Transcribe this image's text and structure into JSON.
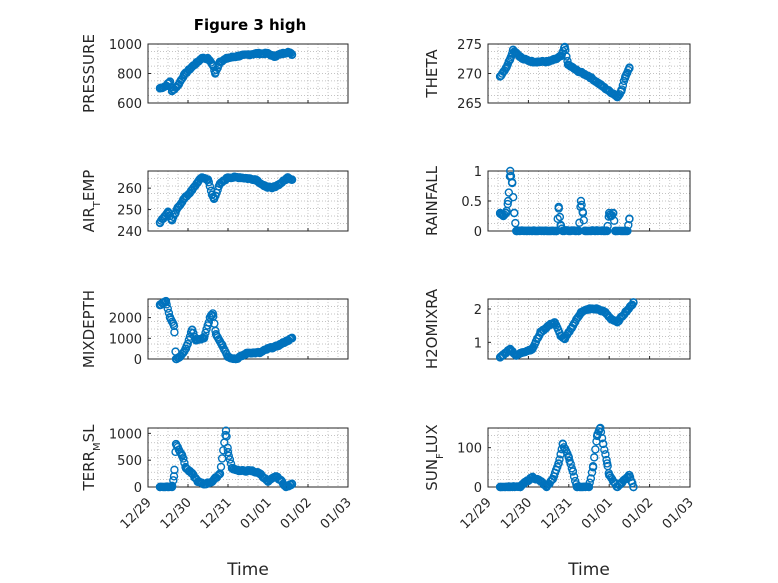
{
  "figure_title": "Figure 3 high",
  "marker_color": "#0072BD",
  "x_tick_labels": [
    "12/29",
    "12/30",
    "12/31",
    "01/01",
    "01/02",
    "01/03"
  ],
  "chart_data": [
    {
      "id": "pressure",
      "type": "scatter",
      "ylabel": "PRESSURE",
      "ylim": [
        600,
        1000
      ],
      "yticks": [
        600,
        800,
        1000
      ],
      "xlabel": "",
      "title": "Figure 3 high",
      "anchors": [
        [
          0.3,
          700
        ],
        [
          0.45,
          715
        ],
        [
          0.55,
          745
        ],
        [
          0.6,
          680
        ],
        [
          0.75,
          720
        ],
        [
          0.9,
          790
        ],
        [
          1.1,
          845
        ],
        [
          1.25,
          880
        ],
        [
          1.35,
          905
        ],
        [
          1.5,
          900
        ],
        [
          1.62,
          860
        ],
        [
          1.68,
          800
        ],
        [
          1.8,
          880
        ],
        [
          2.0,
          905
        ],
        [
          2.3,
          920
        ],
        [
          2.7,
          935
        ],
        [
          3.0,
          935
        ],
        [
          3.15,
          915
        ],
        [
          3.3,
          930
        ],
        [
          3.5,
          945
        ],
        [
          3.6,
          930
        ]
      ]
    },
    {
      "id": "theta",
      "type": "scatter",
      "ylabel": "THETA",
      "ylim": [
        265,
        275
      ],
      "yticks": [
        265,
        270,
        275
      ],
      "xlabel": "",
      "anchors": [
        [
          0.3,
          269.5
        ],
        [
          0.45,
          271
        ],
        [
          0.55,
          272.5
        ],
        [
          0.62,
          274
        ],
        [
          0.7,
          273.5
        ],
        [
          0.85,
          272.5
        ],
        [
          1.1,
          272
        ],
        [
          1.3,
          272
        ],
        [
          1.5,
          272
        ],
        [
          1.7,
          272.5
        ],
        [
          1.82,
          273
        ],
        [
          1.9,
          274.5
        ],
        [
          1.98,
          271.5
        ],
        [
          2.2,
          270.5
        ],
        [
          2.5,
          269.5
        ],
        [
          2.8,
          268
        ],
        [
          3.0,
          267
        ],
        [
          3.12,
          266.5
        ],
        [
          3.2,
          266
        ],
        [
          3.3,
          267
        ],
        [
          3.4,
          269.5
        ],
        [
          3.5,
          271
        ]
      ]
    },
    {
      "id": "air_temp",
      "type": "scatter",
      "ylabel": "AIR_TEMP",
      "ylim": [
        240,
        268
      ],
      "yticks": [
        240,
        250,
        260
      ],
      "xlabel": "",
      "anchors": [
        [
          0.3,
          244
        ],
        [
          0.5,
          249
        ],
        [
          0.6,
          245
        ],
        [
          0.75,
          251
        ],
        [
          0.9,
          255
        ],
        [
          1.1,
          259
        ],
        [
          1.25,
          263
        ],
        [
          1.35,
          265
        ],
        [
          1.5,
          264
        ],
        [
          1.6,
          257
        ],
        [
          1.65,
          255
        ],
        [
          1.8,
          262
        ],
        [
          2.0,
          265
        ],
        [
          2.3,
          265
        ],
        [
          2.7,
          264
        ],
        [
          2.9,
          261
        ],
        [
          3.1,
          260
        ],
        [
          3.3,
          262
        ],
        [
          3.5,
          265
        ],
        [
          3.6,
          264
        ]
      ]
    },
    {
      "id": "rainfall",
      "type": "scatter",
      "ylabel": "RAINFALL",
      "ylim": [
        0,
        1
      ],
      "yticks": [
        0,
        0.5,
        1
      ],
      "xlabel": "",
      "anchors": [
        [
          0.3,
          0.3
        ],
        [
          0.38,
          0.25
        ],
        [
          0.45,
          0.3
        ],
        [
          0.5,
          0.5
        ],
        [
          0.55,
          1.0
        ],
        [
          0.6,
          0.8
        ],
        [
          0.65,
          0.3
        ],
        [
          0.7,
          0
        ],
        [
          1.7,
          0
        ],
        [
          1.75,
          0.4
        ],
        [
          1.8,
          0.1
        ],
        [
          1.85,
          0
        ],
        [
          2.25,
          0
        ],
        [
          2.3,
          0.5
        ],
        [
          2.35,
          0.3
        ],
        [
          2.4,
          0
        ],
        [
          2.95,
          0
        ],
        [
          3.0,
          0.3
        ],
        [
          3.05,
          0.25
        ],
        [
          3.1,
          0.3
        ],
        [
          3.15,
          0
        ],
        [
          3.45,
          0
        ],
        [
          3.5,
          0.2
        ]
      ]
    },
    {
      "id": "mixdepth",
      "type": "scatter",
      "ylabel": "MIXDEPTH",
      "ylim": [
        0,
        2900
      ],
      "yticks": [
        0,
        1000,
        2000
      ],
      "xlabel": "",
      "anchors": [
        [
          0.3,
          2600
        ],
        [
          0.45,
          2800
        ],
        [
          0.55,
          2000
        ],
        [
          0.65,
          1600
        ],
        [
          0.7,
          0
        ],
        [
          0.8,
          100
        ],
        [
          0.95,
          500
        ],
        [
          1.1,
          1400
        ],
        [
          1.2,
          900
        ],
        [
          1.4,
          1000
        ],
        [
          1.55,
          2000
        ],
        [
          1.62,
          2200
        ],
        [
          1.7,
          1200
        ],
        [
          1.85,
          700
        ],
        [
          2.0,
          100
        ],
        [
          2.2,
          0
        ],
        [
          2.5,
          300
        ],
        [
          2.8,
          300
        ],
        [
          3.0,
          500
        ],
        [
          3.2,
          600
        ],
        [
          3.4,
          800
        ],
        [
          3.6,
          1000
        ]
      ]
    },
    {
      "id": "h2omixra",
      "type": "scatter",
      "ylabel": "H2OMIXRA",
      "ylim": [
        0.5,
        2.3
      ],
      "yticks": [
        1,
        2
      ],
      "xlabel": "",
      "anchors": [
        [
          0.3,
          0.55
        ],
        [
          0.45,
          0.7
        ],
        [
          0.55,
          0.8
        ],
        [
          0.7,
          0.6
        ],
        [
          0.85,
          0.7
        ],
        [
          1.1,
          0.8
        ],
        [
          1.3,
          1.3
        ],
        [
          1.5,
          1.5
        ],
        [
          1.65,
          1.6
        ],
        [
          1.8,
          1.2
        ],
        [
          1.9,
          1.1
        ],
        [
          2.1,
          1.5
        ],
        [
          2.3,
          1.9
        ],
        [
          2.5,
          2.0
        ],
        [
          2.7,
          2.0
        ],
        [
          2.9,
          1.9
        ],
        [
          3.05,
          1.7
        ],
        [
          3.2,
          1.6
        ],
        [
          3.4,
          1.9
        ],
        [
          3.55,
          2.1
        ],
        [
          3.6,
          2.2
        ]
      ]
    },
    {
      "id": "terr_msl",
      "type": "scatter",
      "ylabel": "TERR_MSL",
      "ylim": [
        0,
        1100
      ],
      "yticks": [
        0,
        500,
        1000
      ],
      "xlabel": "Time",
      "anchors": [
        [
          0.3,
          0
        ],
        [
          0.6,
          0
        ],
        [
          0.65,
          200
        ],
        [
          0.7,
          800
        ],
        [
          0.85,
          600
        ],
        [
          0.95,
          350
        ],
        [
          1.1,
          250
        ],
        [
          1.25,
          100
        ],
        [
          1.4,
          50
        ],
        [
          1.6,
          100
        ],
        [
          1.8,
          250
        ],
        [
          1.95,
          1050
        ],
        [
          2.0,
          650
        ],
        [
          2.1,
          350
        ],
        [
          2.3,
          300
        ],
        [
          2.6,
          300
        ],
        [
          2.8,
          250
        ],
        [
          3.0,
          100
        ],
        [
          3.2,
          200
        ],
        [
          3.35,
          100
        ],
        [
          3.45,
          0
        ],
        [
          3.6,
          50
        ]
      ]
    },
    {
      "id": "sun_flux",
      "type": "scatter",
      "ylabel": "SUN_FLUX",
      "ylim": [
        0,
        150
      ],
      "yticks": [
        0,
        100
      ],
      "xlabel": "Time",
      "anchors": [
        [
          0.3,
          0
        ],
        [
          0.8,
          0
        ],
        [
          0.9,
          10
        ],
        [
          1.1,
          25
        ],
        [
          1.3,
          15
        ],
        [
          1.45,
          0
        ],
        [
          1.6,
          20
        ],
        [
          1.75,
          60
        ],
        [
          1.85,
          110
        ],
        [
          2.0,
          75
        ],
        [
          2.1,
          40
        ],
        [
          2.2,
          0
        ],
        [
          2.5,
          0
        ],
        [
          2.6,
          50
        ],
        [
          2.7,
          130
        ],
        [
          2.78,
          150
        ],
        [
          2.85,
          110
        ],
        [
          2.95,
          60
        ],
        [
          3.0,
          30
        ],
        [
          3.2,
          0
        ],
        [
          3.4,
          20
        ],
        [
          3.5,
          30
        ],
        [
          3.6,
          0
        ]
      ]
    }
  ]
}
